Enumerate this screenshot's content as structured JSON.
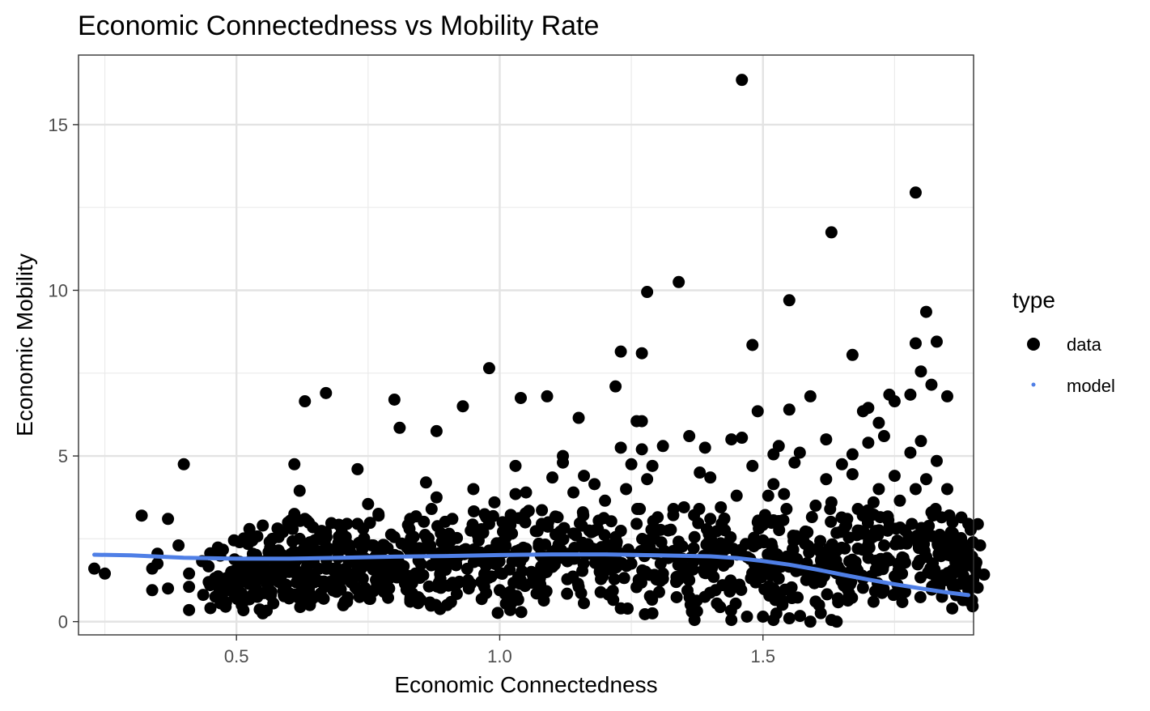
{
  "chart_data": {
    "type": "scatter",
    "title": "Economic Connectedness vs Mobility Rate",
    "xlabel": "Economic Connectedness",
    "ylabel": "Economic Mobility",
    "xlim": [
      0.2,
      1.9
    ],
    "ylim": [
      -0.4,
      17.1
    ],
    "xticks": [
      0.5,
      1.0,
      1.5
    ],
    "xtick_labels": [
      "0.5",
      "1.0",
      "1.5"
    ],
    "yticks": [
      0,
      5,
      10,
      15
    ],
    "ytick_labels": [
      "0",
      "5",
      "10",
      "15"
    ],
    "grid": true,
    "legend": {
      "title": "type",
      "position": "right",
      "entries": [
        {
          "label": "data",
          "color": "#000000",
          "marker": "large-dot"
        },
        {
          "label": "model",
          "color": "#4f7fe6",
          "marker": "small-dot"
        }
      ]
    },
    "series": [
      {
        "name": "data",
        "kind": "points",
        "color": "#000000",
        "points": [
          [
            0.23,
            1.6
          ],
          [
            0.25,
            1.45
          ],
          [
            0.32,
            3.2
          ],
          [
            0.34,
            0.95
          ],
          [
            0.34,
            1.6
          ],
          [
            0.35,
            2.05
          ],
          [
            0.35,
            1.75
          ],
          [
            0.37,
            3.1
          ],
          [
            0.37,
            1.0
          ],
          [
            0.39,
            2.3
          ],
          [
            0.4,
            4.75
          ],
          [
            0.41,
            1.45
          ],
          [
            0.41,
            1.05
          ],
          [
            0.41,
            0.35
          ],
          [
            0.45,
            1.1
          ],
          [
            0.46,
            0.75
          ],
          [
            0.47,
            0.55
          ],
          [
            0.47,
            0.9
          ],
          [
            0.49,
            1.5
          ],
          [
            0.5,
            1.2
          ],
          [
            0.51,
            0.85
          ],
          [
            0.51,
            0.5
          ],
          [
            0.52,
            1.75
          ],
          [
            0.53,
            0.8
          ],
          [
            0.53,
            2.45
          ],
          [
            0.54,
            1.3
          ],
          [
            0.55,
            0.25
          ],
          [
            0.55,
            2.9
          ],
          [
            0.56,
            1.1
          ],
          [
            0.57,
            0.55
          ],
          [
            0.57,
            1.55
          ],
          [
            0.58,
            2.55
          ],
          [
            0.58,
            2.15
          ],
          [
            0.59,
            1.0
          ],
          [
            0.6,
            1.5
          ],
          [
            0.6,
            0.7
          ],
          [
            0.61,
            4.75
          ],
          [
            0.61,
            3.25
          ],
          [
            0.62,
            3.95
          ],
          [
            0.62,
            2.5
          ],
          [
            0.62,
            1.15
          ],
          [
            0.63,
            6.65
          ],
          [
            0.63,
            3.1
          ],
          [
            0.64,
            0.6
          ],
          [
            0.64,
            2.1
          ],
          [
            0.65,
            1.3
          ],
          [
            0.66,
            0.85
          ],
          [
            0.66,
            2.55
          ],
          [
            0.67,
            6.9
          ],
          [
            0.67,
            2.7
          ],
          [
            0.68,
            1.6
          ],
          [
            0.69,
            0.9
          ],
          [
            0.7,
            2.7
          ],
          [
            0.7,
            1.3
          ],
          [
            0.71,
            0.6
          ],
          [
            0.71,
            2.95
          ],
          [
            0.72,
            1.95
          ],
          [
            0.73,
            4.6
          ],
          [
            0.73,
            2.95
          ],
          [
            0.74,
            1.3
          ],
          [
            0.75,
            0.85
          ],
          [
            0.75,
            3.55
          ],
          [
            0.76,
            2.3
          ],
          [
            0.77,
            3.2
          ],
          [
            0.77,
            1.5
          ],
          [
            0.78,
            0.9
          ],
          [
            0.79,
            1.0
          ],
          [
            0.8,
            6.7
          ],
          [
            0.8,
            2.55
          ],
          [
            0.81,
            1.75
          ],
          [
            0.81,
            5.85
          ],
          [
            0.82,
            1.15
          ],
          [
            0.83,
            3.1
          ],
          [
            0.84,
            1.45
          ],
          [
            0.85,
            0.65
          ],
          [
            0.85,
            2.2
          ],
          [
            0.86,
            4.2
          ],
          [
            0.87,
            1.7
          ],
          [
            0.88,
            3.75
          ],
          [
            0.88,
            5.75
          ],
          [
            0.89,
            2.4
          ],
          [
            0.89,
            1.05
          ],
          [
            0.9,
            0.5
          ],
          [
            0.91,
            3.1
          ],
          [
            0.92,
            1.95
          ],
          [
            0.93,
            6.5
          ],
          [
            0.94,
            1.25
          ],
          [
            0.95,
            4.0
          ],
          [
            0.96,
            2.45
          ],
          [
            0.97,
            1.1
          ],
          [
            0.98,
            7.65
          ],
          [
            0.98,
            2.95
          ],
          [
            0.99,
            1.75
          ],
          [
            0.99,
            3.6
          ],
          [
            1.0,
            0.95
          ],
          [
            1.01,
            2.5
          ],
          [
            1.02,
            0.35
          ],
          [
            1.03,
            3.85
          ],
          [
            1.03,
            4.7
          ],
          [
            1.04,
            1.25
          ],
          [
            1.04,
            6.75
          ],
          [
            1.05,
            2.2
          ],
          [
            1.05,
            3.9
          ],
          [
            1.06,
            1.5
          ],
          [
            1.07,
            0.85
          ],
          [
            1.08,
            2.95
          ],
          [
            1.09,
            6.8
          ],
          [
            1.1,
            4.35
          ],
          [
            1.1,
            1.65
          ],
          [
            1.11,
            3.15
          ],
          [
            1.12,
            4.8
          ],
          [
            1.12,
            5.0
          ],
          [
            1.13,
            2.05
          ],
          [
            1.14,
            3.9
          ],
          [
            1.15,
            1.05
          ],
          [
            1.15,
            6.15
          ],
          [
            1.16,
            4.4
          ],
          [
            1.17,
            2.75
          ],
          [
            1.18,
            4.15
          ],
          [
            1.19,
            1.5
          ],
          [
            1.2,
            3.65
          ],
          [
            1.21,
            0.8
          ],
          [
            1.22,
            2.55
          ],
          [
            1.22,
            7.1
          ],
          [
            1.23,
            8.15
          ],
          [
            1.23,
            5.25
          ],
          [
            1.23,
            0.4
          ],
          [
            1.24,
            4.0
          ],
          [
            1.25,
            1.75
          ],
          [
            1.25,
            4.75
          ],
          [
            1.26,
            6.05
          ],
          [
            1.26,
            2.95
          ],
          [
            1.27,
            8.1
          ],
          [
            1.27,
            5.2
          ],
          [
            1.27,
            6.05
          ],
          [
            1.28,
            4.3
          ],
          [
            1.28,
            9.95
          ],
          [
            1.29,
            4.7
          ],
          [
            1.29,
            0.25
          ],
          [
            1.3,
            3.15
          ],
          [
            1.31,
            5.3
          ],
          [
            1.31,
            1.45
          ],
          [
            1.32,
            2.75
          ],
          [
            1.33,
            3.4
          ],
          [
            1.34,
            10.25
          ],
          [
            1.35,
            3.45
          ],
          [
            1.36,
            5.6
          ],
          [
            1.36,
            1.25
          ],
          [
            1.37,
            2.55
          ],
          [
            1.37,
            0.05
          ],
          [
            1.38,
            4.5
          ],
          [
            1.39,
            5.25
          ],
          [
            1.39,
            1.75
          ],
          [
            1.4,
            4.35
          ],
          [
            1.4,
            3.1
          ],
          [
            1.41,
            0.95
          ],
          [
            1.42,
            3.45
          ],
          [
            1.43,
            2.2
          ],
          [
            1.44,
            0.05
          ],
          [
            1.44,
            5.5
          ],
          [
            1.45,
            3.8
          ],
          [
            1.46,
            16.35
          ],
          [
            1.46,
            5.55
          ],
          [
            1.47,
            1.95
          ],
          [
            1.48,
            8.35
          ],
          [
            1.48,
            4.7
          ],
          [
            1.49,
            3.0
          ],
          [
            1.49,
            6.35
          ],
          [
            1.5,
            0.15
          ],
          [
            1.5,
            2.45
          ],
          [
            1.51,
            3.8
          ],
          [
            1.52,
            0.05
          ],
          [
            1.52,
            4.15
          ],
          [
            1.52,
            5.05
          ],
          [
            1.53,
            5.3
          ],
          [
            1.53,
            1.3
          ],
          [
            1.54,
            3.85
          ],
          [
            1.55,
            9.7
          ],
          [
            1.55,
            6.4
          ],
          [
            1.55,
            0.1
          ],
          [
            1.56,
            4.8
          ],
          [
            1.57,
            5.1
          ],
          [
            1.57,
            2.5
          ],
          [
            1.58,
            1.55
          ],
          [
            1.59,
            0.0
          ],
          [
            1.59,
            6.8
          ],
          [
            1.6,
            3.5
          ],
          [
            1.61,
            1.2
          ],
          [
            1.62,
            5.5
          ],
          [
            1.62,
            4.3
          ],
          [
            1.63,
            11.75
          ],
          [
            1.63,
            0.05
          ],
          [
            1.63,
            3.6
          ],
          [
            1.64,
            2.15
          ],
          [
            1.64,
            0.0
          ],
          [
            1.65,
            4.75
          ],
          [
            1.66,
            3.1
          ],
          [
            1.66,
            1.0
          ],
          [
            1.67,
            8.05
          ],
          [
            1.67,
            5.05
          ],
          [
            1.67,
            4.45
          ],
          [
            1.68,
            2.75
          ],
          [
            1.69,
            6.35
          ],
          [
            1.69,
            1.3
          ],
          [
            1.7,
            6.45
          ],
          [
            1.7,
            5.4
          ],
          [
            1.71,
            3.6
          ],
          [
            1.71,
            0.6
          ],
          [
            1.72,
            6.0
          ],
          [
            1.72,
            4.0
          ],
          [
            1.73,
            5.6
          ],
          [
            1.73,
            2.3
          ],
          [
            1.74,
            6.85
          ],
          [
            1.74,
            1.85
          ],
          [
            1.75,
            6.65
          ],
          [
            1.75,
            4.4
          ],
          [
            1.76,
            3.65
          ],
          [
            1.77,
            0.9
          ],
          [
            1.77,
            2.75
          ],
          [
            1.78,
            6.85
          ],
          [
            1.78,
            5.1
          ],
          [
            1.79,
            12.95
          ],
          [
            1.79,
            8.4
          ],
          [
            1.79,
            4.0
          ],
          [
            1.8,
            7.55
          ],
          [
            1.8,
            5.45
          ],
          [
            1.81,
            9.35
          ],
          [
            1.81,
            4.3
          ],
          [
            1.82,
            7.15
          ],
          [
            1.82,
            3.3
          ],
          [
            1.82,
            1.45
          ],
          [
            1.83,
            8.45
          ],
          [
            1.83,
            4.85
          ],
          [
            1.84,
            2.35
          ],
          [
            1.84,
            0.75
          ],
          [
            1.85,
            6.8
          ],
          [
            1.85,
            4.0
          ],
          [
            1.86,
            3.0
          ],
          [
            1.86,
            1.55
          ],
          [
            1.87,
            2.45
          ],
          [
            1.88,
            0.65
          ],
          [
            1.88,
            1.95
          ],
          [
            1.89,
            2.95
          ],
          [
            1.89,
            1.7
          ],
          [
            1.89,
            1.1
          ]
        ]
      },
      {
        "name": "model",
        "kind": "smooth-line",
        "color": "#4f7fe6",
        "points": [
          [
            0.23,
            2.02
          ],
          [
            0.3,
            2.0
          ],
          [
            0.4,
            1.93
          ],
          [
            0.5,
            1.9
          ],
          [
            0.6,
            1.9
          ],
          [
            0.7,
            1.93
          ],
          [
            0.8,
            1.96
          ],
          [
            0.9,
            1.98
          ],
          [
            1.0,
            2.01
          ],
          [
            1.1,
            2.03
          ],
          [
            1.2,
            2.03
          ],
          [
            1.3,
            2.0
          ],
          [
            1.4,
            1.97
          ],
          [
            1.45,
            1.92
          ],
          [
            1.5,
            1.83
          ],
          [
            1.55,
            1.72
          ],
          [
            1.6,
            1.58
          ],
          [
            1.65,
            1.42
          ],
          [
            1.7,
            1.27
          ],
          [
            1.75,
            1.13
          ],
          [
            1.8,
            1.0
          ],
          [
            1.85,
            0.88
          ],
          [
            1.89,
            0.8
          ]
        ]
      }
    ]
  }
}
